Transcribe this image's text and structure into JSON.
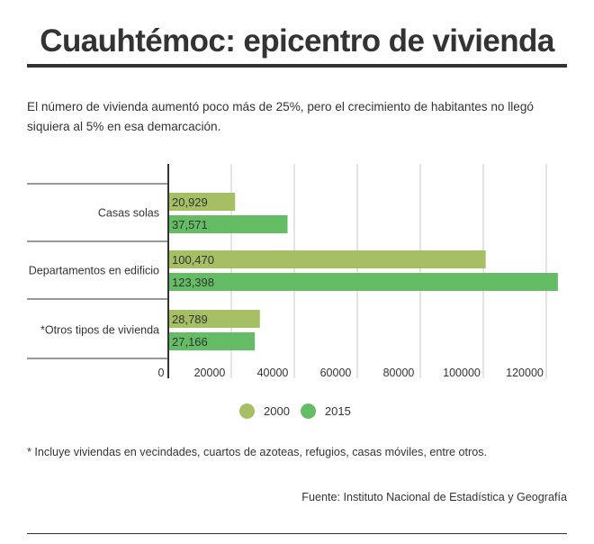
{
  "header": {
    "title": "Cuauhtémoc: epicentro de vivienda",
    "subtitle": "El número de vivienda aumentó poco más de 25%, pero el crecimiento de habitantes no llegó siquiera al 5% en esa demarcación."
  },
  "chart_data": {
    "type": "bar",
    "orientation": "horizontal",
    "categories": [
      "Casas solas",
      "Departamentos en edificio",
      "*Otros tipos de vivienda"
    ],
    "series": [
      {
        "name": "2000",
        "values": [
          20929,
          100470,
          28789
        ],
        "labels": [
          "20,929",
          "100,470",
          "28,789"
        ],
        "color": "#a6bf64"
      },
      {
        "name": "2015",
        "values": [
          37571,
          123398,
          27166
        ],
        "labels": [
          "37,571",
          "123,398",
          "27,166"
        ],
        "color": "#64bd64"
      }
    ],
    "xticks": [
      0,
      20000,
      40000,
      60000,
      80000,
      100000,
      120000
    ],
    "xtick_labels": [
      "0",
      "20000",
      "40000",
      "60000",
      "80000",
      "100000",
      "120000"
    ],
    "xlim": [
      0,
      125000
    ],
    "grid": true,
    "legend": "bottom-center"
  },
  "footer": {
    "footnote": "* Incluye viviendas en vecindades, cuartos de azoteas, refugios, casas móviles, entre otros.",
    "source": "Fuente: Instituto Nacional de Estadística y Geografía"
  }
}
